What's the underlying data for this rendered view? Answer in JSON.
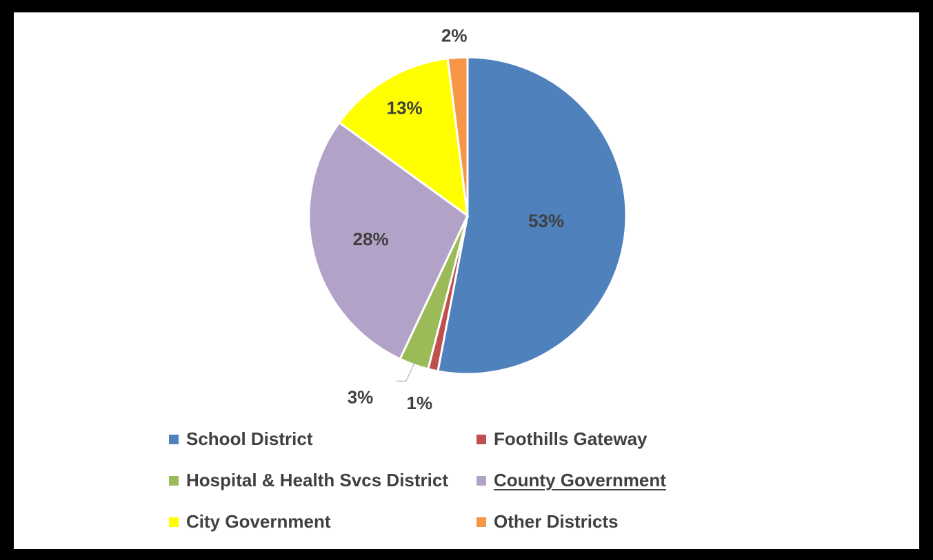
{
  "chart_data": {
    "type": "pie",
    "title": "",
    "slices": [
      {
        "name": "School District",
        "value": 53,
        "label": "53%",
        "color": "#4f81bd"
      },
      {
        "name": "Foothills Gateway",
        "value": 1,
        "label": "1%",
        "color": "#c0504d"
      },
      {
        "name": "Hospital & Health Svcs District",
        "value": 3,
        "label": "3%",
        "color": "#9bbb59"
      },
      {
        "name": "County Government",
        "value": 28,
        "label": "28%",
        "color": "#b3a2c7"
      },
      {
        "name": "City Government",
        "value": 13,
        "label": "13%",
        "color": "#ffff00"
      },
      {
        "name": "Other Districts",
        "value": 2,
        "label": "2%",
        "color": "#f79646"
      }
    ],
    "start_angle": "12 o'clock",
    "direction": "clockwise",
    "legend_position": "bottom",
    "legend": [
      {
        "label": "School District",
        "color": "#4f81bd",
        "underlined": false
      },
      {
        "label": "Foothills Gateway",
        "color": "#c0504d",
        "underlined": false
      },
      {
        "label": "Hospital & Health Svcs District",
        "color": "#9bbb59",
        "underlined": false
      },
      {
        "label": "County Government",
        "color": "#b3a2c7",
        "underlined": true
      },
      {
        "label": "City Government",
        "color": "#ffff00",
        "underlined": false
      },
      {
        "label": "Other Districts",
        "color": "#f79646",
        "underlined": false
      }
    ]
  }
}
